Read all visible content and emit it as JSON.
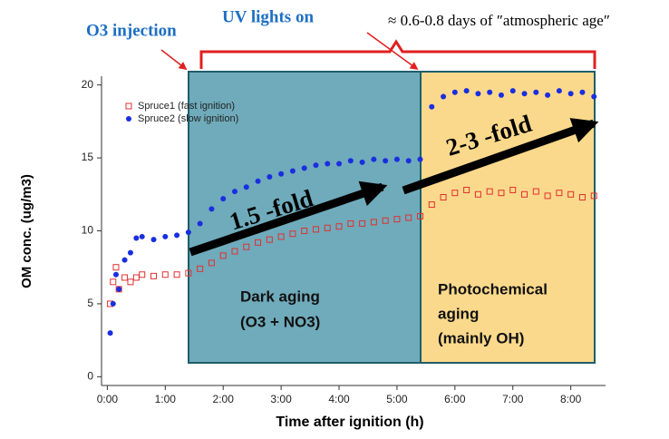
{
  "chart_data": {
    "type": "scatter",
    "xlabel": "Time after ignition (h)",
    "ylabel": "OM conc. (ug/m3)",
    "xlim": [
      -0.1,
      8.6
    ],
    "ylim": [
      -0.6,
      20.6
    ],
    "xticks": [
      {
        "value": 0,
        "label": "0:00"
      },
      {
        "value": 1,
        "label": "1:00"
      },
      {
        "value": 2,
        "label": "2:00"
      },
      {
        "value": 3,
        "label": "3:00"
      },
      {
        "value": 4,
        "label": "4:00"
      },
      {
        "value": 5,
        "label": "5:00"
      },
      {
        "value": 6,
        "label": "6:00"
      },
      {
        "value": 7,
        "label": "7:00"
      },
      {
        "value": 8,
        "label": "8:00"
      }
    ],
    "yticks": [
      0,
      5,
      10,
      15,
      20
    ],
    "legend": "upper left",
    "x": [
      0.05,
      0.1,
      0.15,
      0.2,
      0.3,
      0.4,
      0.5,
      0.6,
      0.8,
      1.0,
      1.2,
      1.4,
      1.6,
      1.8,
      2.0,
      2.2,
      2.4,
      2.6,
      2.8,
      3.0,
      3.2,
      3.4,
      3.6,
      3.8,
      4.0,
      4.2,
      4.4,
      4.6,
      4.8,
      5.0,
      5.2,
      5.4,
      5.6,
      5.8,
      6.0,
      6.2,
      6.4,
      6.6,
      6.8,
      7.0,
      7.2,
      7.4,
      7.6,
      7.8,
      8.0,
      8.2,
      8.4
    ],
    "series": [
      {
        "name": "Spruce1 (fast ignition)",
        "color": "#e03030",
        "marker": "open-square",
        "values": [
          5.0,
          6.5,
          7.5,
          6.0,
          6.8,
          6.5,
          6.8,
          7.0,
          6.9,
          7.0,
          7.0,
          7.1,
          7.4,
          7.8,
          8.3,
          8.6,
          8.9,
          9.2,
          9.4,
          9.6,
          9.8,
          10.0,
          10.1,
          10.2,
          10.3,
          10.5,
          10.5,
          10.6,
          10.7,
          10.8,
          10.9,
          11.0,
          11.8,
          12.3,
          12.6,
          12.8,
          12.5,
          12.7,
          12.6,
          12.8,
          12.5,
          12.7,
          12.4,
          12.6,
          12.5,
          12.3,
          12.4
        ]
      },
      {
        "name": "Spruce2 (slow ignition)",
        "color": "#1a2ee0",
        "marker": "filled-circle",
        "values": [
          3.0,
          5.0,
          7.0,
          6.0,
          8.0,
          8.5,
          9.5,
          9.6,
          9.4,
          9.6,
          9.7,
          9.9,
          10.5,
          11.5,
          12.2,
          12.7,
          13.0,
          13.4,
          13.7,
          13.9,
          14.1,
          14.3,
          14.5,
          14.6,
          14.6,
          14.8,
          14.7,
          14.9,
          14.8,
          14.9,
          14.8,
          14.9,
          18.5,
          19.2,
          19.5,
          19.6,
          19.4,
          19.5,
          19.3,
          19.6,
          19.4,
          19.5,
          19.3,
          19.6,
          19.4,
          19.5,
          19.2
        ]
      }
    ],
    "annotations": {
      "o3": "O3 injection",
      "uv": "UV lights on",
      "age": "≈ 0.6-0.8 days of ″atmospheric age″",
      "fold1": "1.5 -fold",
      "fold2": "2-3 -fold",
      "dark": [
        "Dark aging",
        "(O3 + NO3)"
      ],
      "photo": [
        "Photochemical",
        "aging",
        "(mainly OH)"
      ]
    }
  }
}
